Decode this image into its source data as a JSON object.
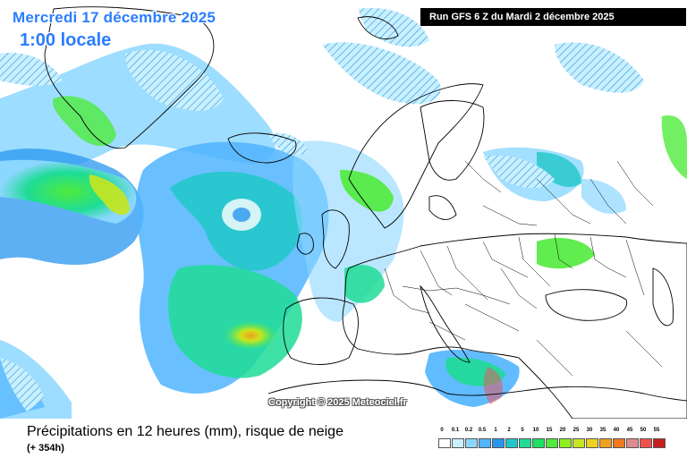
{
  "header": {
    "date": "Mercredi 17 décembre 2025",
    "time": "1:00 locale",
    "run": "Run GFS 6 Z du Mardi 2 décembre 2025"
  },
  "map": {
    "copyright": "Copyright © 2025 Meteociel.fr"
  },
  "footer": {
    "title": "Précipitations en 12 heures (mm), risque de neige",
    "subtitle": "(+ 354h)"
  },
  "legend": {
    "labels": [
      "0",
      "0.1",
      "0.2",
      "0.5",
      "1",
      "2",
      "5",
      "10",
      "15",
      "20",
      "25",
      "30",
      "35",
      "40",
      "45",
      "50",
      "55"
    ],
    "colors": [
      "#ffffff",
      "#c8f0ff",
      "#8cd7ff",
      "#50b4ff",
      "#2896f0",
      "#1ec8c8",
      "#1edc96",
      "#1ee164",
      "#50eb3c",
      "#8cf01e",
      "#c8e61e",
      "#f0d21e",
      "#f0a01e",
      "#f0781e",
      "#dc8c8c",
      "#f05050",
      "#c81e1e"
    ]
  }
}
